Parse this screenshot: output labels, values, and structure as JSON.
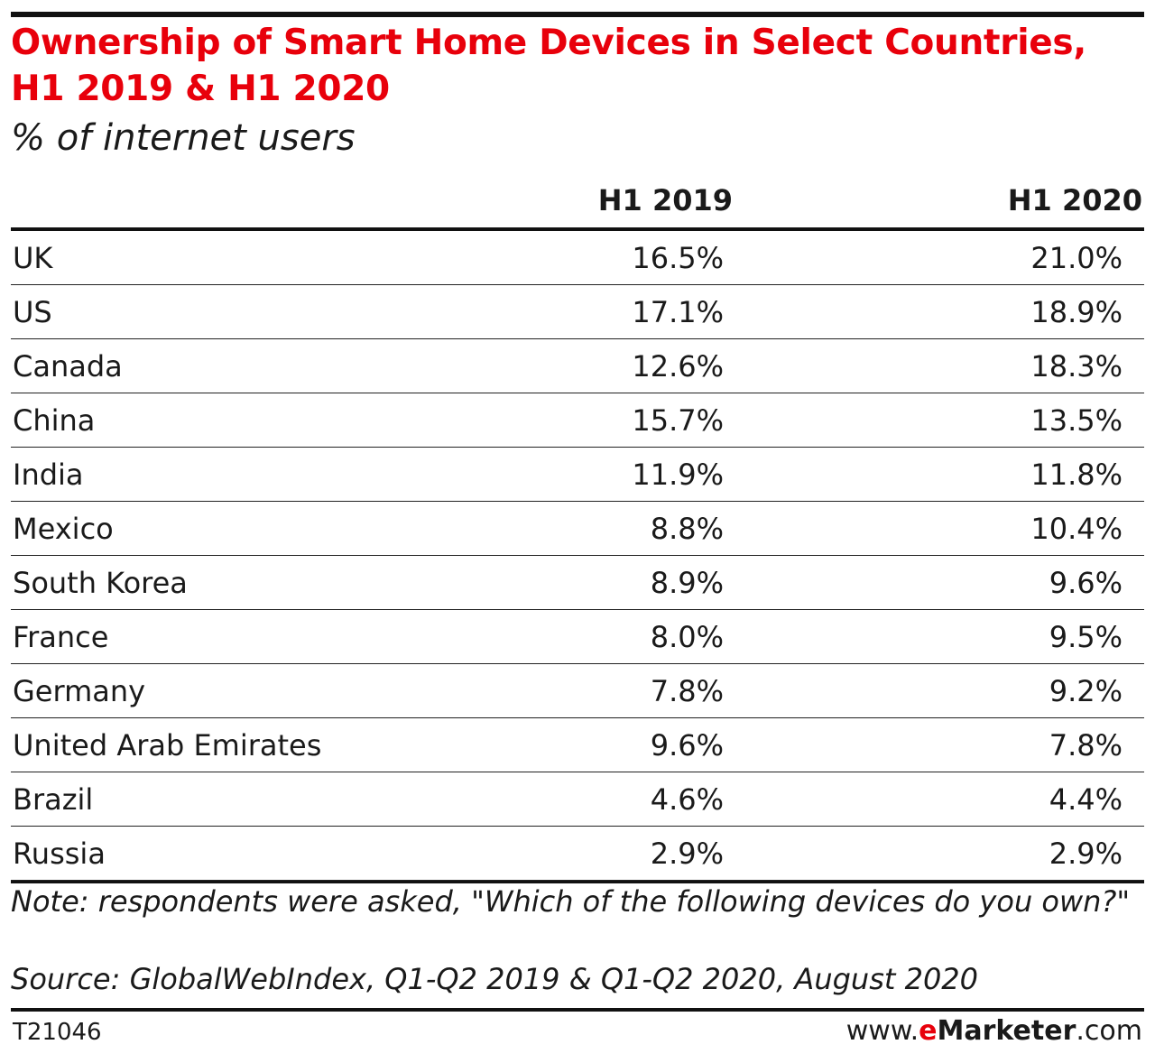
{
  "chart_data": {
    "type": "table",
    "title": "Ownership of Smart Home Devices in Select Countries, H1 2019 & H1 2020",
    "subtitle": "% of internet users",
    "columns": [
      "H1 2019",
      "H1 2020"
    ],
    "rows": [
      {
        "country": "UK",
        "h1_2019": "16.5%",
        "h1_2020": "21.0%"
      },
      {
        "country": "US",
        "h1_2019": "17.1%",
        "h1_2020": "18.9%"
      },
      {
        "country": "Canada",
        "h1_2019": "12.6%",
        "h1_2020": "18.3%"
      },
      {
        "country": "China",
        "h1_2019": "15.7%",
        "h1_2020": "13.5%"
      },
      {
        "country": "India",
        "h1_2019": "11.9%",
        "h1_2020": "11.8%"
      },
      {
        "country": "Mexico",
        "h1_2019": "8.8%",
        "h1_2020": "10.4%"
      },
      {
        "country": "South Korea",
        "h1_2019": "8.9%",
        "h1_2020": "9.6%"
      },
      {
        "country": "France",
        "h1_2019": "8.0%",
        "h1_2020": "9.5%"
      },
      {
        "country": "Germany",
        "h1_2019": "7.8%",
        "h1_2020": "9.2%"
      },
      {
        "country": "United Arab Emirates",
        "h1_2019": "9.6%",
        "h1_2020": "7.8%"
      },
      {
        "country": "Brazil",
        "h1_2019": "4.6%",
        "h1_2020": "4.4%"
      },
      {
        "country": "Russia",
        "h1_2019": "2.9%",
        "h1_2020": "2.9%"
      }
    ],
    "note": "Note: respondents were asked, \"Which of the following devices do you own?\"",
    "source": "Source: GlobalWebIndex, Q1-Q2 2019 & Q1-Q2 2020, August 2020"
  },
  "footer": {
    "code": "T21046",
    "brand_prefix": "www.",
    "brand_e": "e",
    "brand_name": "Marketer",
    "brand_suffix": ".com"
  },
  "colors": {
    "title": "#e8000b",
    "rules": "#111111",
    "text": "#1a1a1a"
  }
}
